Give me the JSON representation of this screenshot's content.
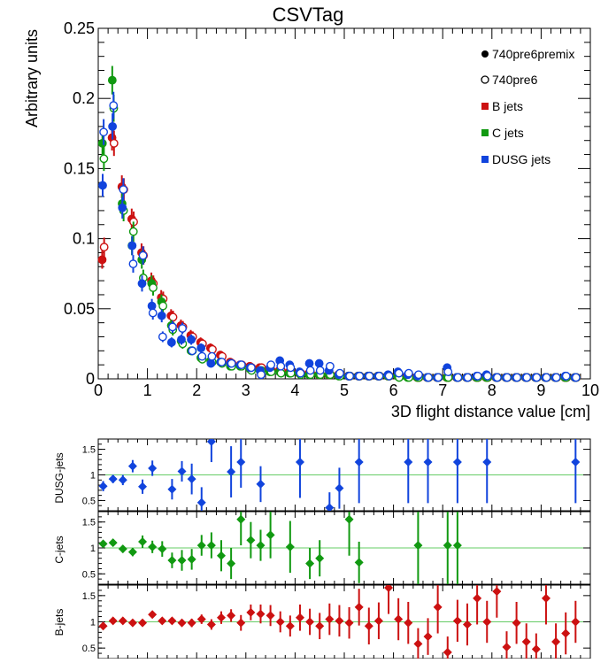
{
  "chart_data": [
    {
      "type": "scatter",
      "title": "CSVTag",
      "xlabel": "3D flight distance value [cm]",
      "ylabel": "Arbitrary units",
      "xlim": [
        0,
        10
      ],
      "ylim": [
        0,
        0.25
      ],
      "x_ticks": [
        "0",
        "1",
        "2",
        "3",
        "4",
        "5",
        "6",
        "7",
        "8",
        "9",
        "10"
      ],
      "y_ticks": [
        "0",
        "0.05",
        "0.1",
        "0.15",
        "0.2",
        "0.25"
      ],
      "legend_position": "top-right",
      "legend": [
        {
          "label": "740pre6premix",
          "marker": "filled-circle",
          "color": "#000000"
        },
        {
          "label": "740pre6",
          "marker": "open-circle",
          "color": "#000000"
        },
        {
          "label": "B jets",
          "marker": "square",
          "color": "#cc1111"
        },
        {
          "label": "C jets",
          "marker": "square",
          "color": "#119911"
        },
        {
          "label": "DUSG jets",
          "marker": "square",
          "color": "#1144dd"
        }
      ],
      "x": [
        0.1,
        0.3,
        0.5,
        0.7,
        0.9,
        1.1,
        1.3,
        1.5,
        1.7,
        1.9,
        2.1,
        2.3,
        2.5,
        2.7,
        2.9,
        3.1,
        3.3,
        3.5,
        3.7,
        3.9,
        4.1,
        4.3,
        4.5,
        4.7,
        4.9,
        5.1,
        5.3,
        5.5,
        5.7,
        5.9,
        6.1,
        6.3,
        6.5,
        6.7,
        6.9,
        7.1,
        7.3,
        7.5,
        7.7,
        7.9,
        8.1,
        8.3,
        8.5,
        8.7,
        8.9,
        9.1,
        9.3,
        9.5,
        9.7
      ],
      "series": [
        {
          "name": "B jets",
          "sample": "740pre6premix",
          "color": "#cc1111",
          "values": [
            0.085,
            0.172,
            0.137,
            0.114,
            0.09,
            0.07,
            0.058,
            0.045,
            0.038,
            0.031,
            0.026,
            0.022,
            0.017,
            0.012,
            0.01,
            0.009,
            0.008,
            0.007,
            0.006,
            0.005,
            0.004,
            0.004,
            0.003,
            0.003,
            0.003,
            0.002,
            0.002,
            0.002,
            0.002,
            0.002,
            0.002,
            0.002,
            0.001,
            0.001,
            0.001,
            0.001,
            0.001,
            0.001,
            0.001,
            0.001,
            0.001,
            0.001,
            0.001,
            0.001,
            0.001,
            0.001,
            0.001,
            0.001,
            0.001
          ]
        },
        {
          "name": "B jets",
          "sample": "740pre6",
          "color": "#cc1111",
          "values": [
            0.094,
            0.168,
            0.135,
            0.112,
            0.088,
            0.068,
            0.057,
            0.044,
            0.037,
            0.03,
            0.025,
            0.021,
            0.016,
            0.011,
            0.01,
            0.008,
            0.008,
            0.006,
            0.006,
            0.005,
            0.004,
            0.004,
            0.003,
            0.003,
            0.003,
            0.002,
            0.002,
            0.002,
            0.002,
            0.002,
            0.002,
            0.002,
            0.001,
            0.001,
            0.001,
            0.001,
            0.001,
            0.001,
            0.001,
            0.001,
            0.001,
            0.001,
            0.001,
            0.001,
            0.001,
            0.001,
            0.001,
            0.001,
            0.001
          ]
        },
        {
          "name": "C jets",
          "sample": "740pre6premix",
          "color": "#119911",
          "values": [
            0.168,
            0.213,
            0.125,
            0.095,
            0.085,
            0.068,
            0.055,
            0.038,
            0.027,
            0.02,
            0.015,
            0.013,
            0.012,
            0.009,
            0.009,
            0.007,
            0.006,
            0.005,
            0.005,
            0.004,
            0.004,
            0.003,
            0.003,
            0.003,
            0.002,
            0.002,
            0.002,
            0.002,
            0.002,
            0.002,
            0.002,
            0.001,
            0.001,
            0.001,
            0.001,
            0.001,
            0.001,
            0.001,
            0.001,
            0.001,
            0.001,
            0.001,
            0.001,
            0.001,
            0.001,
            0.001,
            0.001,
            0.001,
            0.001
          ]
        },
        {
          "name": "C jets",
          "sample": "740pre6",
          "color": "#119911",
          "values": [
            0.157,
            0.193,
            0.12,
            0.105,
            0.072,
            0.065,
            0.052,
            0.035,
            0.025,
            0.02,
            0.014,
            0.012,
            0.011,
            0.009,
            0.009,
            0.006,
            0.006,
            0.005,
            0.004,
            0.004,
            0.003,
            0.003,
            0.003,
            0.003,
            0.002,
            0.002,
            0.002,
            0.002,
            0.002,
            0.002,
            0.001,
            0.001,
            0.001,
            0.001,
            0.001,
            0.001,
            0.001,
            0.001,
            0.001,
            0.001,
            0.001,
            0.001,
            0.001,
            0.001,
            0.001,
            0.001,
            0.001,
            0.001,
            0.001
          ]
        },
        {
          "name": "DUSG jets",
          "sample": "740pre6premix",
          "color": "#1144dd",
          "values": [
            0.138,
            0.18,
            0.122,
            0.095,
            0.068,
            0.052,
            0.045,
            0.026,
            0.028,
            0.028,
            0.022,
            0.011,
            0.012,
            0.011,
            0.01,
            0.008,
            0.006,
            0.008,
            0.013,
            0.01,
            0.005,
            0.011,
            0.011,
            0.006,
            0.003,
            0.002,
            0.002,
            0.002,
            0.002,
            0.003,
            0.005,
            0.003,
            0.002,
            0.001,
            0.001,
            0.008,
            0.001,
            0.001,
            0.002,
            0.003,
            0.001,
            0.001,
            0.001,
            0.001,
            0.001,
            0.001,
            0.001,
            0.002,
            0.001
          ]
        },
        {
          "name": "DUSG jets",
          "sample": "740pre6",
          "color": "#1144dd",
          "values": [
            0.176,
            0.195,
            0.135,
            0.082,
            0.088,
            0.047,
            0.03,
            0.037,
            0.036,
            0.02,
            0.016,
            0.016,
            0.012,
            0.011,
            0.01,
            0.008,
            0.003,
            0.01,
            0.009,
            0.008,
            0.004,
            0.006,
            0.006,
            0.009,
            0.004,
            0.002,
            0.002,
            0.002,
            0.002,
            0.002,
            0.004,
            0.004,
            0.003,
            0.001,
            0.001,
            0.005,
            0.001,
            0.001,
            0.002,
            0.002,
            0.001,
            0.001,
            0.001,
            0.001,
            0.001,
            0.001,
            0.001,
            0.002,
            0.001
          ]
        }
      ]
    },
    {
      "type": "scatter",
      "ylabel": "DUSG-jets",
      "xlim": [
        0,
        10
      ],
      "ylim": [
        0.3,
        1.7
      ],
      "y_ticks": [
        "0.5",
        "1",
        "1.5"
      ],
      "reference_line": 1,
      "color": "#1144dd",
      "x": [
        0.1,
        0.3,
        0.5,
        0.7,
        0.9,
        1.1,
        1.5,
        1.7,
        1.9,
        2.1,
        2.3,
        2.7,
        2.9,
        3.3,
        4.1,
        4.7,
        4.9,
        5.3,
        6.3,
        6.7,
        7.3,
        7.9,
        9.7
      ],
      "values": [
        0.78,
        0.92,
        0.9,
        1.17,
        0.77,
        1.13,
        0.72,
        1.07,
        0.92,
        0.46,
        1.65,
        1.06,
        1.25,
        0.82,
        1.25,
        0.36,
        0.74,
        1.25,
        1.25,
        1.25,
        1.25,
        1.25,
        1.25
      ],
      "errors": [
        0.1,
        0.08,
        0.1,
        0.12,
        0.14,
        0.15,
        0.2,
        0.2,
        0.3,
        0.3,
        0.4,
        0.5,
        0.5,
        0.35,
        0.7,
        0.3,
        0.4,
        0.8,
        0.8,
        0.8,
        0.8,
        0.8,
        0.8
      ]
    },
    {
      "type": "scatter",
      "ylabel": "C-jets",
      "xlim": [
        0,
        10
      ],
      "ylim": [
        0.3,
        1.7
      ],
      "y_ticks": [
        "0.5",
        "1",
        "1.5"
      ],
      "reference_line": 1,
      "color": "#119911",
      "x": [
        0.1,
        0.3,
        0.5,
        0.7,
        0.9,
        1.1,
        1.3,
        1.5,
        1.7,
        1.9,
        2.1,
        2.3,
        2.5,
        2.7,
        2.9,
        3.1,
        3.3,
        3.5,
        3.9,
        4.3,
        4.5,
        5.1,
        5.3,
        6.5,
        7.1,
        7.3
      ],
      "values": [
        1.08,
        1.1,
        0.98,
        0.92,
        1.12,
        1.02,
        0.98,
        0.76,
        0.76,
        0.78,
        1.05,
        1.05,
        0.85,
        0.7,
        1.55,
        1.15,
        1.05,
        1.25,
        1.02,
        0.7,
        0.8,
        1.55,
        0.72,
        1.05,
        1.05,
        1.05
      ],
      "errors": [
        0.06,
        0.06,
        0.07,
        0.08,
        0.12,
        0.12,
        0.15,
        0.15,
        0.2,
        0.2,
        0.2,
        0.25,
        0.3,
        0.3,
        0.5,
        0.35,
        0.3,
        0.45,
        0.5,
        0.3,
        0.35,
        0.7,
        0.4,
        0.9,
        0.9,
        0.9
      ]
    },
    {
      "type": "scatter",
      "ylabel": "B-jets",
      "xlim": [
        0,
        10
      ],
      "ylim": [
        0.3,
        1.7
      ],
      "y_ticks": [
        "0.5",
        "1",
        "1.5"
      ],
      "reference_line": 1,
      "color": "#cc1111",
      "x": [
        0.1,
        0.3,
        0.5,
        0.7,
        0.9,
        1.1,
        1.3,
        1.5,
        1.7,
        1.9,
        2.1,
        2.3,
        2.5,
        2.7,
        2.9,
        3.1,
        3.3,
        3.5,
        3.7,
        3.9,
        4.1,
        4.3,
        4.5,
        4.7,
        4.9,
        5.1,
        5.3,
        5.5,
        5.7,
        5.9,
        6.1,
        6.3,
        6.5,
        6.7,
        6.9,
        7.1,
        7.3,
        7.5,
        7.7,
        7.9,
        8.1,
        8.3,
        8.5,
        8.7,
        8.9,
        9.1,
        9.3,
        9.5,
        9.7
      ],
      "values": [
        0.92,
        1.02,
        1.02,
        0.98,
        0.98,
        1.14,
        1.02,
        1.02,
        0.98,
        0.98,
        1.05,
        0.95,
        1.08,
        1.12,
        0.98,
        1.18,
        1.15,
        1.12,
        1.0,
        0.92,
        1.08,
        1.0,
        0.92,
        1.05,
        1.02,
        0.98,
        1.28,
        0.92,
        1.02,
        1.65,
        1.05,
        0.98,
        0.58,
        0.72,
        1.28,
        0.42,
        1.02,
        0.95,
        1.45,
        1.0,
        1.58,
        0.52,
        0.98,
        0.62,
        0.48,
        1.45,
        0.62,
        0.78,
        1.0
      ],
      "errors": [
        0.04,
        0.03,
        0.03,
        0.04,
        0.05,
        0.05,
        0.06,
        0.06,
        0.07,
        0.08,
        0.09,
        0.1,
        0.12,
        0.12,
        0.15,
        0.15,
        0.18,
        0.2,
        0.2,
        0.2,
        0.25,
        0.25,
        0.25,
        0.3,
        0.3,
        0.3,
        0.35,
        0.35,
        0.35,
        0.5,
        0.4,
        0.4,
        0.3,
        0.35,
        0.5,
        0.3,
        0.4,
        0.4,
        0.5,
        0.4,
        0.5,
        0.3,
        0.4,
        0.35,
        0.3,
        0.5,
        0.35,
        0.4,
        0.4
      ]
    }
  ],
  "colors": {
    "b": "#cc1111",
    "c": "#119911",
    "dusg": "#1144dd",
    "reference_line": "#66cc66",
    "frame": "#000000"
  }
}
